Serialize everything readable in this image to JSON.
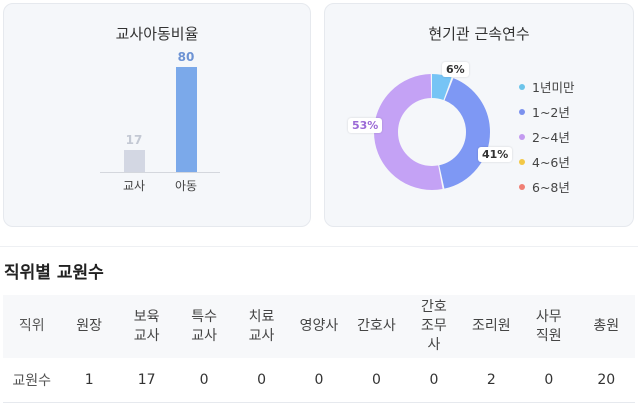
{
  "ratio_card": {
    "title": "교사아동비율",
    "teacher_label": "교사",
    "child_label": "아동",
    "teacher_value": "17",
    "child_value": "80"
  },
  "tenure_card": {
    "title": "현기관 근속연수",
    "labels": {
      "lt1": "6%",
      "y1to2": "41%",
      "y2to4": "53%"
    },
    "legend": [
      {
        "label": "1년미만",
        "color": "#6cc4ea"
      },
      {
        "label": "1~2년",
        "color": "#7b91ee"
      },
      {
        "label": "2~4년",
        "color": "#c39af0"
      },
      {
        "label": "4~6년",
        "color": "#f3c846"
      },
      {
        "label": "6~8년",
        "color": "#f07f74"
      }
    ]
  },
  "staff_section": {
    "title": "직위별 교원수",
    "headers": [
      "직위",
      "원장",
      "보육교사",
      "특수교사",
      "치료교사",
      "영양사",
      "간호사",
      "간호조무사",
      "조리원",
      "사무직원",
      "총원"
    ],
    "row": [
      "교원수",
      "1",
      "17",
      "0",
      "0",
      "0",
      "0",
      "0",
      "2",
      "0",
      "20"
    ]
  },
  "chart_data": [
    {
      "type": "bar",
      "title": "교사아동비율",
      "categories": [
        "교사",
        "아동"
      ],
      "values": [
        17,
        80
      ],
      "colors": [
        "#d3d7e3",
        "#7ba9ea"
      ],
      "ylim": [
        0,
        80
      ]
    },
    {
      "type": "pie",
      "title": "현기관 근속연수",
      "categories": [
        "1년미만",
        "1~2년",
        "2~4년",
        "4~6년",
        "6~8년"
      ],
      "values": [
        6,
        41,
        53,
        0,
        0
      ],
      "colors": [
        "#76c4f5",
        "#7e98f4",
        "#c4a2f5",
        "#f3c846",
        "#f07f74"
      ]
    }
  ]
}
